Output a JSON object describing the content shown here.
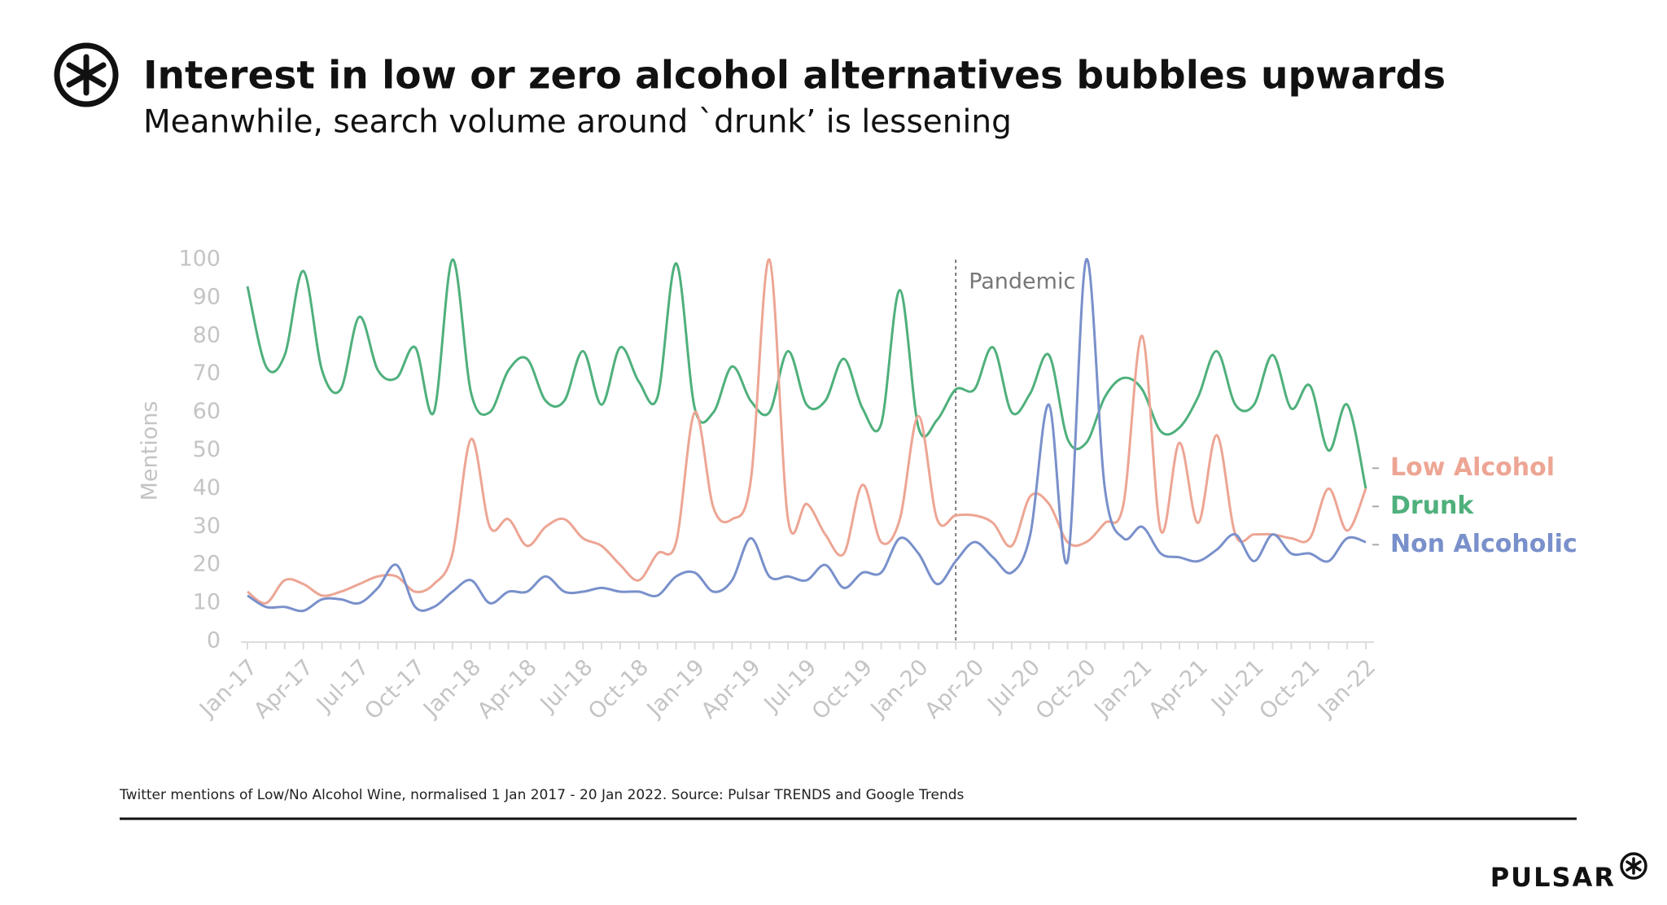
{
  "chart_data": {
    "type": "line",
    "title": "Interest in low or zero alcohol alternatives bubbles upwards",
    "subtitle": "Meanwhile, search volume around `drunk’ is lessening",
    "y_label": "Mentions",
    "footnote": "Twitter mentions of Low/No Alcohol Wine, normalised 1 Jan 2017 - 20 Jan 2022. Source: Pulsar TRENDS and Google Trends",
    "brand": "PULSAR",
    "annotation": {
      "text": "Pandemic",
      "x": 38
    },
    "categories": [
      "Jan-17",
      null,
      null,
      "Apr-17",
      null,
      null,
      "Jul-17",
      null,
      null,
      "Oct-17",
      null,
      null,
      "Jan-18",
      null,
      null,
      "Apr-18",
      null,
      null,
      "Jul-18",
      null,
      null,
      "Oct-18",
      null,
      null,
      "Jan-19",
      null,
      null,
      "Apr-19",
      null,
      null,
      "Jul-19",
      null,
      null,
      "Oct-19",
      null,
      null,
      "Jan-20",
      null,
      null,
      "Apr-20",
      null,
      null,
      "Jul-20",
      null,
      null,
      "Oct-20",
      null,
      null,
      "Jan-21",
      null,
      null,
      "Apr-21",
      null,
      null,
      "Jul-21",
      null,
      null,
      "Oct-21",
      null,
      null,
      "Jan-22"
    ],
    "series": [
      {
        "name": "Low Alcohol",
        "color": "#eda594",
        "values": [
          13,
          10,
          16,
          15,
          12,
          13,
          15,
          17,
          17,
          13,
          15,
          23,
          53,
          30,
          32,
          25,
          30,
          32,
          27,
          25,
          20,
          16,
          23,
          26,
          60,
          35,
          32,
          42,
          100,
          32,
          36,
          28,
          23,
          41,
          26,
          32,
          59,
          32,
          33,
          33,
          31,
          25,
          38,
          36,
          26,
          26,
          31,
          36,
          80,
          29,
          52,
          31,
          54,
          28,
          28,
          28,
          27,
          27,
          40,
          29,
          40
        ]
      },
      {
        "name": "Drunk",
        "color": "#4fb07c",
        "values": [
          93,
          72,
          75,
          97,
          71,
          66,
          85,
          71,
          69,
          77,
          60,
          100,
          65,
          60,
          71,
          74,
          63,
          63,
          76,
          62,
          77,
          68,
          64,
          99,
          61,
          60,
          72,
          63,
          60,
          76,
          62,
          63,
          74,
          61,
          57,
          92,
          56,
          58,
          66,
          66,
          77,
          60,
          65,
          75,
          53,
          52,
          64,
          69,
          66,
          55,
          56,
          64,
          76,
          62,
          62,
          75,
          61,
          67,
          50,
          62,
          40
        ]
      },
      {
        "name": "Non Alcoholic",
        "color": "#7990cb",
        "values": [
          12,
          9,
          9,
          8,
          11,
          11,
          10,
          14,
          20,
          9,
          9,
          13,
          16,
          10,
          13,
          13,
          17,
          13,
          13,
          14,
          13,
          13,
          12,
          17,
          18,
          13,
          16,
          27,
          17,
          17,
          16,
          20,
          14,
          18,
          18,
          27,
          23,
          15,
          21,
          26,
          22,
          18,
          28,
          62,
          21,
          100,
          40,
          27,
          30,
          23,
          22,
          21,
          24,
          28,
          21,
          28,
          23,
          23,
          21,
          27,
          26
        ]
      }
    ],
    "ylim": [
      0,
      100
    ],
    "yticks": [
      0,
      10,
      20,
      30,
      40,
      50,
      60,
      70,
      80,
      90,
      100
    ]
  }
}
